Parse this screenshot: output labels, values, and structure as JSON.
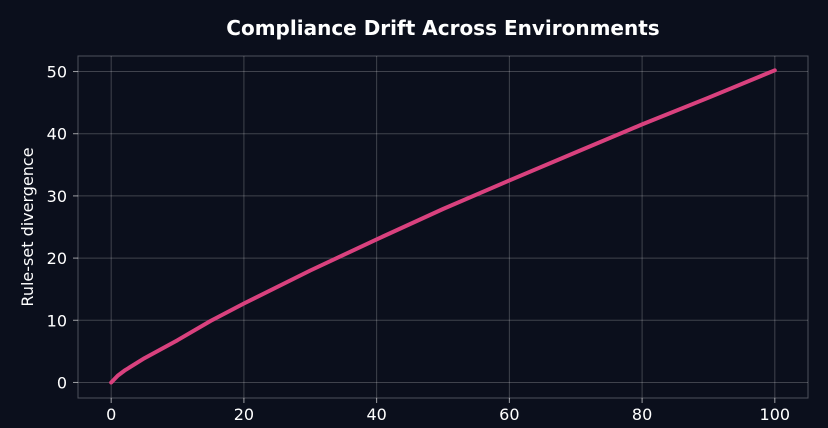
{
  "chart_data": {
    "type": "line",
    "title": "Compliance Drift Across Environments",
    "xlabel": "",
    "ylabel": "Rule-set divergence",
    "xlim": [
      -5,
      105
    ],
    "ylim": [
      -2.5,
      52.5
    ],
    "xticks": [
      0,
      20,
      40,
      60,
      80,
      100
    ],
    "yticks": [
      0,
      10,
      20,
      30,
      40,
      50
    ],
    "grid": true,
    "series": [
      {
        "color": "#d9417e",
        "x": [
          0,
          1,
          2,
          5,
          10,
          15,
          20,
          30,
          40,
          50,
          60,
          70,
          80,
          90,
          100
        ],
        "y": [
          0,
          1.1,
          1.9,
          3.9,
          6.8,
          9.9,
          12.7,
          18.0,
          23.0,
          27.9,
          32.5,
          37.0,
          41.5,
          45.8,
          50.2
        ]
      }
    ]
  }
}
